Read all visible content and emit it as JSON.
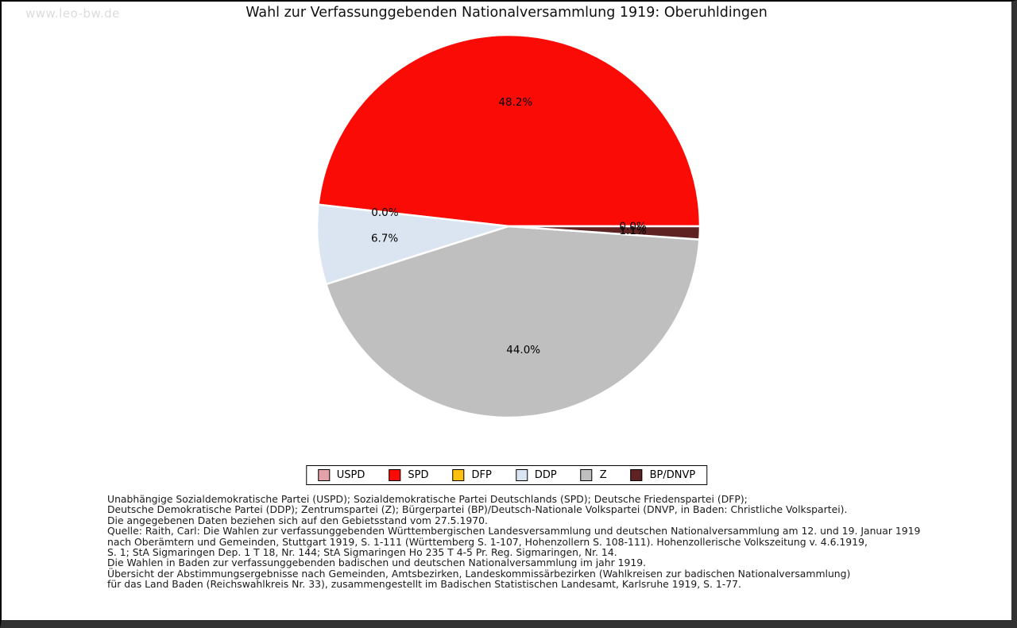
{
  "watermark": "www.leo-bw.de",
  "title": "Wahl zur Verfassunggebenden Nationalversammlung 1919: Oberuhldingen",
  "chart_data": {
    "type": "pie",
    "title": "Wahl zur Verfassunggebenden Nationalversammlung 1919: Oberuhldingen",
    "start_angle_deg": 0,
    "direction": "counterclockwise",
    "legend_position": "bottom",
    "slices": [
      {
        "name": "USPD",
        "value": 0.0,
        "label": "0.0%",
        "color": "#e3a2aa"
      },
      {
        "name": "SPD",
        "value": 48.2,
        "label": "48.2%",
        "color": "#fb0b06"
      },
      {
        "name": "DFP",
        "value": 0.0,
        "label": "0.0%",
        "color": "#fdc00e"
      },
      {
        "name": "DDP",
        "value": 6.7,
        "label": "6.7%",
        "color": "#dbe5f1"
      },
      {
        "name": "Z",
        "value": 44.0,
        "label": "44.0%",
        "color": "#bfbfbf"
      },
      {
        "name": "BP/DNVP",
        "value": 1.1,
        "label": "1.1%",
        "color": "#5e2223"
      }
    ]
  },
  "notes": {
    "parties": [
      "Unabhängige Sozialdemokratische Partei (USPD); Sozialdemokratische Partei Deutschlands (SPD); Deutsche Friedenspartei (DFP);",
      "Deutsche Demokratische Partei (DDP); Zentrumspartei (Z); Bürgerpartei (BP)/Deutsch-Nationale Volkspartei (DNVP, in Baden: Christliche Volkspartei)."
    ],
    "gebietsstand": "Die angegebenen Daten beziehen sich auf den Gebietsstand vom 27.5.1970.",
    "source": [
      "Quelle: Raith, Carl: Die Wahlen zur verfassunggebenden Württembergischen Landesversammlung und deutschen Nationalversammlung am 12. und 19. Januar 1919",
      "nach Oberämtern und Gemeinden, Stuttgart 1919, S. 1-111 (Württemberg S. 1-107, Hohenzollern S. 108-111). Hohenzollerische Volkszeitung v. 4.6.1919,",
      "S. 1; StA Sigmaringen Dep. 1 T 18, Nr. 144; StA Sigmaringen Ho 235 T 4-5 Pr. Reg. Sigmaringen, Nr. 14.",
      "Die Wahlen in Baden zur verfassunggebenden badischen und deutschen Nationalversammlung im jahr 1919.",
      "Übersicht der Abstimmungsergebnisse nach Gemeinden, Amtsbezirken, Landeskommissärbezirken (Wahlkreisen zur badischen Nationalversammlung)",
      "für das Land Baden (Reichswahlkreis Nr. 33), zusammengestellt im Badischen Statistischen Landesamt, Karlsruhe 1919, S. 1-77."
    ]
  }
}
